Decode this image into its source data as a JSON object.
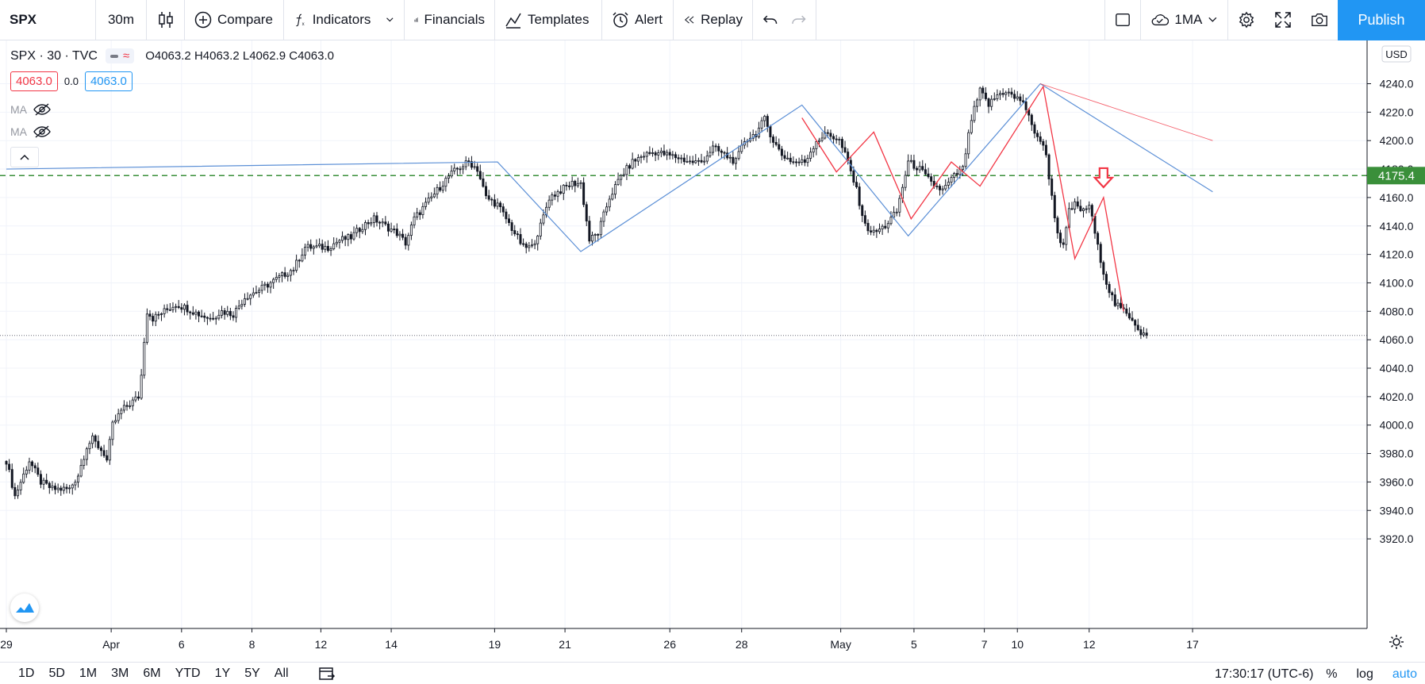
{
  "toolbar": {
    "symbol": "SPX",
    "interval": "30m",
    "compare": "Compare",
    "indicators": "Indicators",
    "financials": "Financials",
    "templates": "Templates",
    "alert": "Alert",
    "replay": "Replay",
    "layout_name": "1MA",
    "publish": "Publish"
  },
  "legend": {
    "title": "SPX · 30 · TVC",
    "open_label": "O",
    "open": "4063.2",
    "high_label": "H",
    "high": "4063.2",
    "low_label": "L",
    "low": "4062.9",
    "close_label": "C",
    "close": "4063.0",
    "bid": "4063.0",
    "spread": "0.0",
    "ask": "4063.0",
    "ma1": "MA",
    "ma2": "MA"
  },
  "price_axis": {
    "currency": "USD",
    "ticks": [
      "4240.0",
      "4220.0",
      "4200.0",
      "4180.0",
      "4160.0",
      "4140.0",
      "4120.0",
      "4100.0",
      "4080.0",
      "4060.0",
      "4040.0",
      "4020.0",
      "4000.0",
      "3980.0",
      "3960.0",
      "3940.0",
      "3920.0"
    ],
    "hline_label": "4175.4",
    "top_partial_label": "10"
  },
  "time_axis": {
    "ticks": [
      "29",
      "Apr",
      "6",
      "8",
      "12",
      "14",
      "19",
      "21",
      "26",
      "28",
      "May",
      "5",
      "7",
      "10",
      "12",
      "17"
    ]
  },
  "bottom": {
    "ranges": [
      "1D",
      "5D",
      "1M",
      "3M",
      "6M",
      "YTD",
      "1Y",
      "5Y",
      "All"
    ],
    "clock": "17:30:17 (UTC-6)",
    "percent": "%",
    "log": "log",
    "auto": "auto"
  },
  "colors": {
    "accent": "#2196f3",
    "down": "#f23645",
    "candle": "#131722",
    "blue_line": "#5b8fd6",
    "red_line": "#f23645",
    "hline": "#3a8f3a"
  },
  "chart_data": {
    "type": "candlestick",
    "symbol": "SPX",
    "interval": "30",
    "y_range": [
      3915,
      4255
    ],
    "horizontal_line": 4175.4,
    "last_price": 4063.0,
    "close_path": [
      [
        0,
        3975
      ],
      [
        3,
        3950
      ],
      [
        8,
        3975
      ],
      [
        12,
        3960
      ],
      [
        16,
        3955
      ],
      [
        22,
        3955
      ],
      [
        25,
        3965
      ],
      [
        28,
        3985
      ],
      [
        30,
        3990
      ],
      [
        34,
        3980
      ],
      [
        35,
        3975
      ],
      [
        37,
        4000
      ],
      [
        40,
        4010
      ],
      [
        43,
        4015
      ],
      [
        46,
        4020
      ],
      [
        47,
        4035
      ],
      [
        48,
        4060
      ],
      [
        49,
        4080
      ],
      [
        51,
        4075
      ],
      [
        55,
        4080
      ],
      [
        59,
        4085
      ],
      [
        63,
        4082
      ],
      [
        67,
        4078
      ],
      [
        71,
        4075
      ],
      [
        75,
        4080
      ],
      [
        79,
        4078
      ],
      [
        83,
        4090
      ],
      [
        88,
        4095
      ],
      [
        92,
        4100
      ],
      [
        96,
        4105
      ],
      [
        100,
        4110
      ],
      [
        104,
        4125
      ],
      [
        108,
        4125
      ],
      [
        112,
        4125
      ],
      [
        116,
        4130
      ],
      [
        120,
        4132
      ],
      [
        124,
        4140
      ],
      [
        128,
        4145
      ],
      [
        132,
        4140
      ],
      [
        136,
        4135
      ],
      [
        139,
        4128
      ],
      [
        142,
        4145
      ],
      [
        146,
        4155
      ],
      [
        150,
        4165
      ],
      [
        154,
        4175
      ],
      [
        157,
        4180
      ],
      [
        161,
        4185
      ],
      [
        164,
        4180
      ],
      [
        167,
        4160
      ],
      [
        171,
        4155
      ],
      [
        174,
        4145
      ],
      [
        177,
        4135
      ],
      [
        180,
        4125
      ],
      [
        183,
        4125
      ],
      [
        186,
        4140
      ],
      [
        189,
        4160
      ],
      [
        193,
        4165
      ],
      [
        197,
        4170
      ],
      [
        200,
        4170
      ],
      [
        203,
        4130
      ],
      [
        206,
        4135
      ],
      [
        210,
        4160
      ],
      [
        214,
        4175
      ],
      [
        218,
        4185
      ],
      [
        222,
        4190
      ],
      [
        226,
        4192
      ],
      [
        230,
        4190
      ],
      [
        234,
        4188
      ],
      [
        238,
        4185
      ],
      [
        242,
        4185
      ],
      [
        246,
        4195
      ],
      [
        250,
        4190
      ],
      [
        254,
        4185
      ],
      [
        257,
        4200
      ],
      [
        261,
        4205
      ],
      [
        264,
        4215
      ],
      [
        267,
        4200
      ],
      [
        270,
        4190
      ],
      [
        274,
        4185
      ],
      [
        278,
        4185
      ],
      [
        282,
        4200
      ],
      [
        286,
        4205
      ],
      [
        290,
        4200
      ],
      [
        293,
        4185
      ],
      [
        296,
        4165
      ],
      [
        299,
        4140
      ],
      [
        302,
        4135
      ],
      [
        306,
        4140
      ],
      [
        310,
        4150
      ],
      [
        314,
        4185
      ],
      [
        318,
        4180
      ],
      [
        322,
        4170
      ],
      [
        326,
        4165
      ],
      [
        330,
        4175
      ],
      [
        333,
        4180
      ],
      [
        336,
        4215
      ],
      [
        339,
        4235
      ],
      [
        342,
        4225
      ],
      [
        345,
        4232
      ],
      [
        348,
        4235
      ],
      [
        351,
        4230
      ],
      [
        354,
        4228
      ],
      [
        357,
        4210
      ],
      [
        360,
        4200
      ],
      [
        362,
        4190
      ],
      [
        364,
        4160
      ],
      [
        366,
        4135
      ],
      [
        368,
        4125
      ],
      [
        370,
        4150
      ],
      [
        372,
        4155
      ],
      [
        375,
        4150
      ],
      [
        377,
        4155
      ],
      [
        380,
        4125
      ],
      [
        383,
        4100
      ],
      [
        386,
        4085
      ],
      [
        389,
        4080
      ],
      [
        392,
        4075
      ],
      [
        395,
        4065
      ],
      [
        397,
        4063
      ]
    ],
    "blue_path": [
      [
        0,
        4180
      ],
      [
        171,
        4185
      ],
      [
        200,
        4122
      ],
      [
        277,
        4225
      ],
      [
        314,
        4133
      ],
      [
        360,
        4240
      ],
      [
        420,
        4164
      ]
    ],
    "red_path": [
      [
        277,
        4216
      ],
      [
        289,
        4178
      ],
      [
        302,
        4206
      ],
      [
        315,
        4145
      ],
      [
        329,
        4185
      ],
      [
        339,
        4168
      ],
      [
        361,
        4238
      ],
      [
        372,
        4117
      ],
      [
        382,
        4160
      ],
      [
        389,
        4080
      ]
    ],
    "red_trendline": [
      [
        360,
        4240
      ],
      [
        420,
        4200
      ]
    ],
    "arrow_at": [
      382,
      4165
    ]
  }
}
